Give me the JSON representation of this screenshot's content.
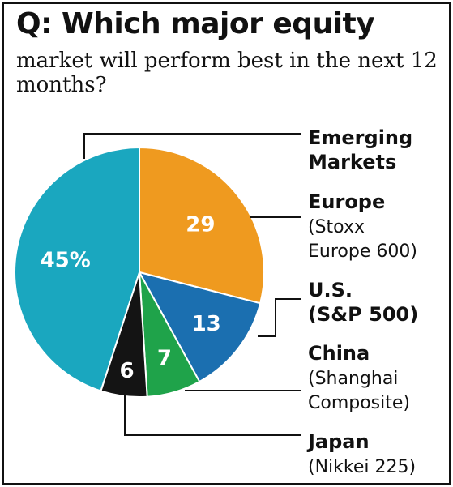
{
  "header": {
    "title": "Q: Which major equity",
    "subtitle": "market will perform best in the next 12 months?"
  },
  "chart_data": {
    "type": "pie",
    "title": "Q: Which major equity market will perform best in the next 12 months?",
    "slices": [
      {
        "label": "Emerging Markets",
        "label_lines": [
          "Emerging",
          "Markets"
        ],
        "sub_lines": [],
        "value": 45,
        "display": "45%",
        "color": "#1aa7bf"
      },
      {
        "label": "Europe (Stoxx Europe 600)",
        "label_lines": [
          "Europe"
        ],
        "sub_lines": [
          "(Stoxx",
          "Europe 600)"
        ],
        "value": 29,
        "display": "29",
        "color": "#ef9a1f"
      },
      {
        "label": "U.S. (S&P 500)",
        "label_lines": [
          "U.S.",
          "(S&P 500)"
        ],
        "sub_lines": [],
        "value": 13,
        "display": "13",
        "color": "#1b6fb0"
      },
      {
        "label": "China (Shanghai Composite)",
        "label_lines": [
          "China"
        ],
        "sub_lines": [
          "(Shanghai",
          "Composite)"
        ],
        "value": 7,
        "display": "7",
        "color": "#1fa34a"
      },
      {
        "label": "Japan (Nikkei 225)",
        "label_lines": [
          "Japan"
        ],
        "sub_lines": [
          "(Nikkei 225)"
        ],
        "value": 6,
        "display": "6",
        "color": "#141414"
      }
    ]
  }
}
